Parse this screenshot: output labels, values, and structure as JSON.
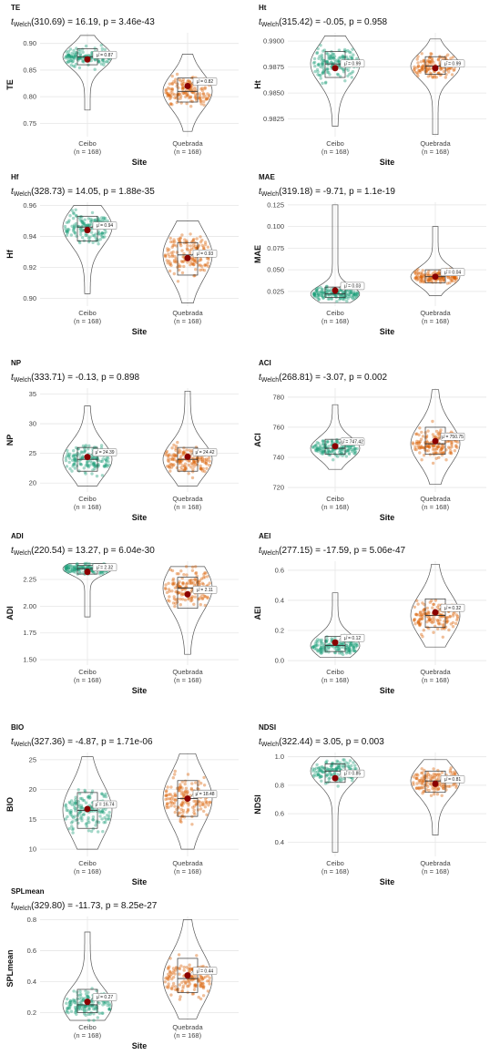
{
  "colors": {
    "ceibo": "#1b9e77",
    "quebrada": "#d95f02",
    "mean": "#8b0000",
    "grid": "#e6e6e6"
  },
  "chart_data": [
    {
      "type": "violin",
      "title": "TE",
      "subtitle": {
        "pre": "t",
        "sub": "Welch",
        "rest": "(310.69) = 16.19, p = 3.46e-43"
      },
      "ylabel": "TE",
      "xlabel": "Site",
      "categories": [
        "Ceibo",
        "Quebrada"
      ],
      "n_labels": [
        "(n = 168)",
        "(n = 168)"
      ],
      "yticks": [
        "0.75",
        "0.80",
        "0.85",
        "0.90"
      ],
      "ylim": [
        0.725,
        0.92
      ],
      "means": [
        0.87,
        0.82
      ],
      "mean_labels": [
        "μ̂ = 0.87",
        "μ̂ = 0.82"
      ],
      "ranges": [
        [
          0.775,
          0.915
        ],
        [
          0.735,
          0.88
        ]
      ],
      "boxes": [
        [
          0.86,
          0.875,
          0.89
        ],
        [
          0.79,
          0.81,
          0.835
        ]
      ]
    },
    {
      "type": "violin",
      "title": "Ht",
      "subtitle": {
        "pre": "t",
        "sub": "Welch",
        "rest": "(315.42) = -0.05, p = 0.958"
      },
      "ylabel": "Ht",
      "xlabel": "Site",
      "categories": [
        "Ceibo",
        "Quebrada"
      ],
      "n_labels": [
        "(n = 168)",
        "(n = 168)"
      ],
      "yticks": [
        "0.9825",
        "0.9850",
        "0.9875",
        "0.9900"
      ],
      "ylim": [
        0.9808,
        0.9908
      ],
      "means": [
        0.9874,
        0.9874
      ],
      "mean_labels": [
        "μ̂ = 0.99",
        "μ̂ = 0.99"
      ],
      "ranges": [
        [
          0.9818,
          0.9905
        ],
        [
          0.981,
          0.9902
        ]
      ],
      "boxes": [
        [
          0.9865,
          0.9878,
          0.989
        ],
        [
          0.9868,
          0.9876,
          0.9885
        ]
      ]
    },
    {
      "type": "violin",
      "title": "Hf",
      "subtitle": {
        "pre": "t",
        "sub": "Welch",
        "rest": "(328.73) = 14.05, p = 1.88e-35"
      },
      "ylabel": "Hf",
      "xlabel": "Site",
      "categories": [
        "Ceibo",
        "Quebrada"
      ],
      "n_labels": [
        "(n = 168)",
        "(n = 168)"
      ],
      "yticks": [
        "0.90",
        "0.92",
        "0.94",
        "0.96"
      ],
      "ylim": [
        0.895,
        0.962
      ],
      "means": [
        0.944,
        0.926
      ],
      "mean_labels": [
        "μ̂ = 0.94",
        "μ̂ = 0.93"
      ],
      "ranges": [
        [
          0.903,
          0.96
        ],
        [
          0.897,
          0.95
        ]
      ],
      "boxes": [
        [
          0.937,
          0.946,
          0.953
        ],
        [
          0.915,
          0.928,
          0.936
        ]
      ]
    },
    {
      "type": "violin",
      "title": "MAE",
      "subtitle": {
        "pre": "t",
        "sub": "Welch",
        "rest": "(319.18) = -9.71, p = 1.1e-19"
      },
      "ylabel": "MAE",
      "xlabel": "Site",
      "categories": [
        "Ceibo",
        "Quebrada"
      ],
      "n_labels": [
        "(n = 168)",
        "(n = 168)"
      ],
      "yticks": [
        "0.025",
        "0.050",
        "0.075",
        "0.100",
        "0.125"
      ],
      "ylim": [
        0.008,
        0.128
      ],
      "means": [
        0.026,
        0.042
      ],
      "mean_labels": [
        "μ̂ = 0.03",
        "μ̂ = 0.04"
      ],
      "ranges": [
        [
          0.012,
          0.125
        ],
        [
          0.02,
          0.1
        ]
      ],
      "boxes": [
        [
          0.018,
          0.022,
          0.03
        ],
        [
          0.035,
          0.042,
          0.05
        ]
      ]
    },
    {
      "type": "violin",
      "title": "NP",
      "subtitle": {
        "pre": "t",
        "sub": "Welch",
        "rest": "(333.71) = -0.13, p = 0.898"
      },
      "ylabel": "NP",
      "xlabel": "Site",
      "categories": [
        "Ceibo",
        "Quebrada"
      ],
      "n_labels": [
        "(n = 168)",
        "(n = 168)"
      ],
      "yticks": [
        "20",
        "25",
        "30",
        "35"
      ],
      "ylim": [
        18.5,
        36
      ],
      "means": [
        24.39,
        24.42
      ],
      "mean_labels": [
        "μ̂ = 24.39",
        "μ̂ = 24.42"
      ],
      "ranges": [
        [
          19.5,
          33
        ],
        [
          19.5,
          35.5
        ]
      ],
      "boxes": [
        [
          22,
          24,
          26
        ],
        [
          22,
          24,
          26
        ]
      ]
    },
    {
      "type": "violin",
      "title": "ACI",
      "subtitle": {
        "pre": "t",
        "sub": "Welch",
        "rest": "(268.81) = -3.07, p = 0.002"
      },
      "ylabel": "ACI",
      "xlabel": "Site",
      "categories": [
        "Ceibo",
        "Quebrada"
      ],
      "n_labels": [
        "(n = 168)",
        "(n = 168)"
      ],
      "yticks": [
        "720",
        "740",
        "760",
        "780"
      ],
      "ylim": [
        717,
        786
      ],
      "means": [
        747.42,
        750.75
      ],
      "mean_labels": [
        "μ̂ = 747.42",
        "μ̂ = 750.75"
      ],
      "ranges": [
        [
          732,
          775
        ],
        [
          722,
          785
        ]
      ],
      "boxes": [
        [
          742,
          746,
          752
        ],
        [
          742,
          749,
          760
        ]
      ]
    },
    {
      "type": "violin",
      "title": "ADI",
      "subtitle": {
        "pre": "t",
        "sub": "Welch",
        "rest": "(220.54) = 13.27, p = 6.04e-30"
      },
      "ylabel": "ADI",
      "xlabel": "Site",
      "categories": [
        "Ceibo",
        "Quebrada"
      ],
      "n_labels": [
        "(n = 168)",
        "(n = 168)"
      ],
      "yticks": [
        "1.50",
        "1.75",
        "2.00",
        "2.25"
      ],
      "ylim": [
        1.45,
        2.42
      ],
      "means": [
        2.32,
        2.11
      ],
      "mean_labels": [
        "μ̂ = 2.32",
        "μ̂ = 2.11"
      ],
      "ranges": [
        [
          1.9,
          2.4
        ],
        [
          1.55,
          2.37
        ]
      ],
      "boxes": [
        [
          2.3,
          2.35,
          2.38
        ],
        [
          1.98,
          2.17,
          2.27
        ]
      ]
    },
    {
      "type": "violin",
      "title": "AEI",
      "subtitle": {
        "pre": "t",
        "sub": "Welch",
        "rest": "(277.15) = -17.59, p = 5.06e-47"
      },
      "ylabel": "AEI",
      "xlabel": "Site",
      "categories": [
        "Ceibo",
        "Quebrada"
      ],
      "n_labels": [
        "(n = 168)",
        "(n = 168)"
      ],
      "yticks": [
        "0.0",
        "0.2",
        "0.4",
        "0.6"
      ],
      "ylim": [
        -0.03,
        0.66
      ],
      "means": [
        0.12,
        0.32
      ],
      "mean_labels": [
        "μ̂ = 0.12",
        "μ̂ = 0.32"
      ],
      "ranges": [
        [
          0.02,
          0.45
        ],
        [
          0.09,
          0.64
        ]
      ],
      "boxes": [
        [
          0.06,
          0.1,
          0.16
        ],
        [
          0.22,
          0.3,
          0.41
        ]
      ]
    },
    {
      "type": "violin",
      "title": "BIO",
      "subtitle": {
        "pre": "t",
        "sub": "Welch",
        "rest": "(327.36) = -4.87, p = 1.71e-06"
      },
      "ylabel": "BIO",
      "xlabel": "Site",
      "categories": [
        "Ceibo",
        "Quebrada"
      ],
      "n_labels": [
        "(n = 168)",
        "(n = 168)"
      ],
      "yticks": [
        "10",
        "15",
        "20",
        "25"
      ],
      "ylim": [
        8.8,
        26.2
      ],
      "means": [
        16.74,
        18.48
      ],
      "mean_labels": [
        "μ̂ = 16.74",
        "μ̂ = 18.48"
      ],
      "ranges": [
        [
          10,
          25.5
        ],
        [
          10,
          26
        ]
      ],
      "boxes": [
        [
          13.5,
          16.5,
          19.5
        ],
        [
          15.5,
          18.5,
          21.5
        ]
      ]
    },
    {
      "type": "violin",
      "title": "NDSI",
      "subtitle": {
        "pre": "t",
        "sub": "Welch",
        "rest": "(322.44) = 3.05, p = 0.003"
      },
      "ylabel": "NDSI",
      "xlabel": "Site",
      "categories": [
        "Ceibo",
        "Quebrada"
      ],
      "n_labels": [
        "(n = 168)",
        "(n = 168)"
      ],
      "yticks": [
        "0.4",
        "0.6",
        "0.8",
        "1.0"
      ],
      "ylim": [
        0.3,
        1.03
      ],
      "means": [
        0.85,
        0.81
      ],
      "mean_labels": [
        "μ̂ = 0.85",
        "μ̂ = 0.81"
      ],
      "ranges": [
        [
          0.33,
          1.0
        ],
        [
          0.45,
          0.98
        ]
      ],
      "boxes": [
        [
          0.82,
          0.9,
          0.95
        ],
        [
          0.75,
          0.83,
          0.9
        ]
      ]
    },
    {
      "type": "violin",
      "title": "SPLmean",
      "subtitle": {
        "pre": "t",
        "sub": "Welch",
        "rest": "(329.80) = -11.73, p = 8.25e-27"
      },
      "ylabel": "SPLmean",
      "xlabel": "Site",
      "categories": [
        "Ceibo",
        "Quebrada"
      ],
      "n_labels": [
        "(n = 168)",
        "(n = 168)"
      ],
      "yticks": [
        "0.2",
        "0.4",
        "0.6",
        "0.8"
      ],
      "ylim": [
        0.15,
        0.82
      ],
      "means": [
        0.27,
        0.44
      ],
      "mean_labels": [
        "μ̂ = 0.27",
        "μ̂ = 0.44"
      ],
      "ranges": [
        [
          0.15,
          0.72
        ],
        [
          0.16,
          0.8
        ]
      ],
      "boxes": [
        [
          0.2,
          0.25,
          0.35
        ],
        [
          0.33,
          0.42,
          0.55
        ]
      ]
    }
  ]
}
